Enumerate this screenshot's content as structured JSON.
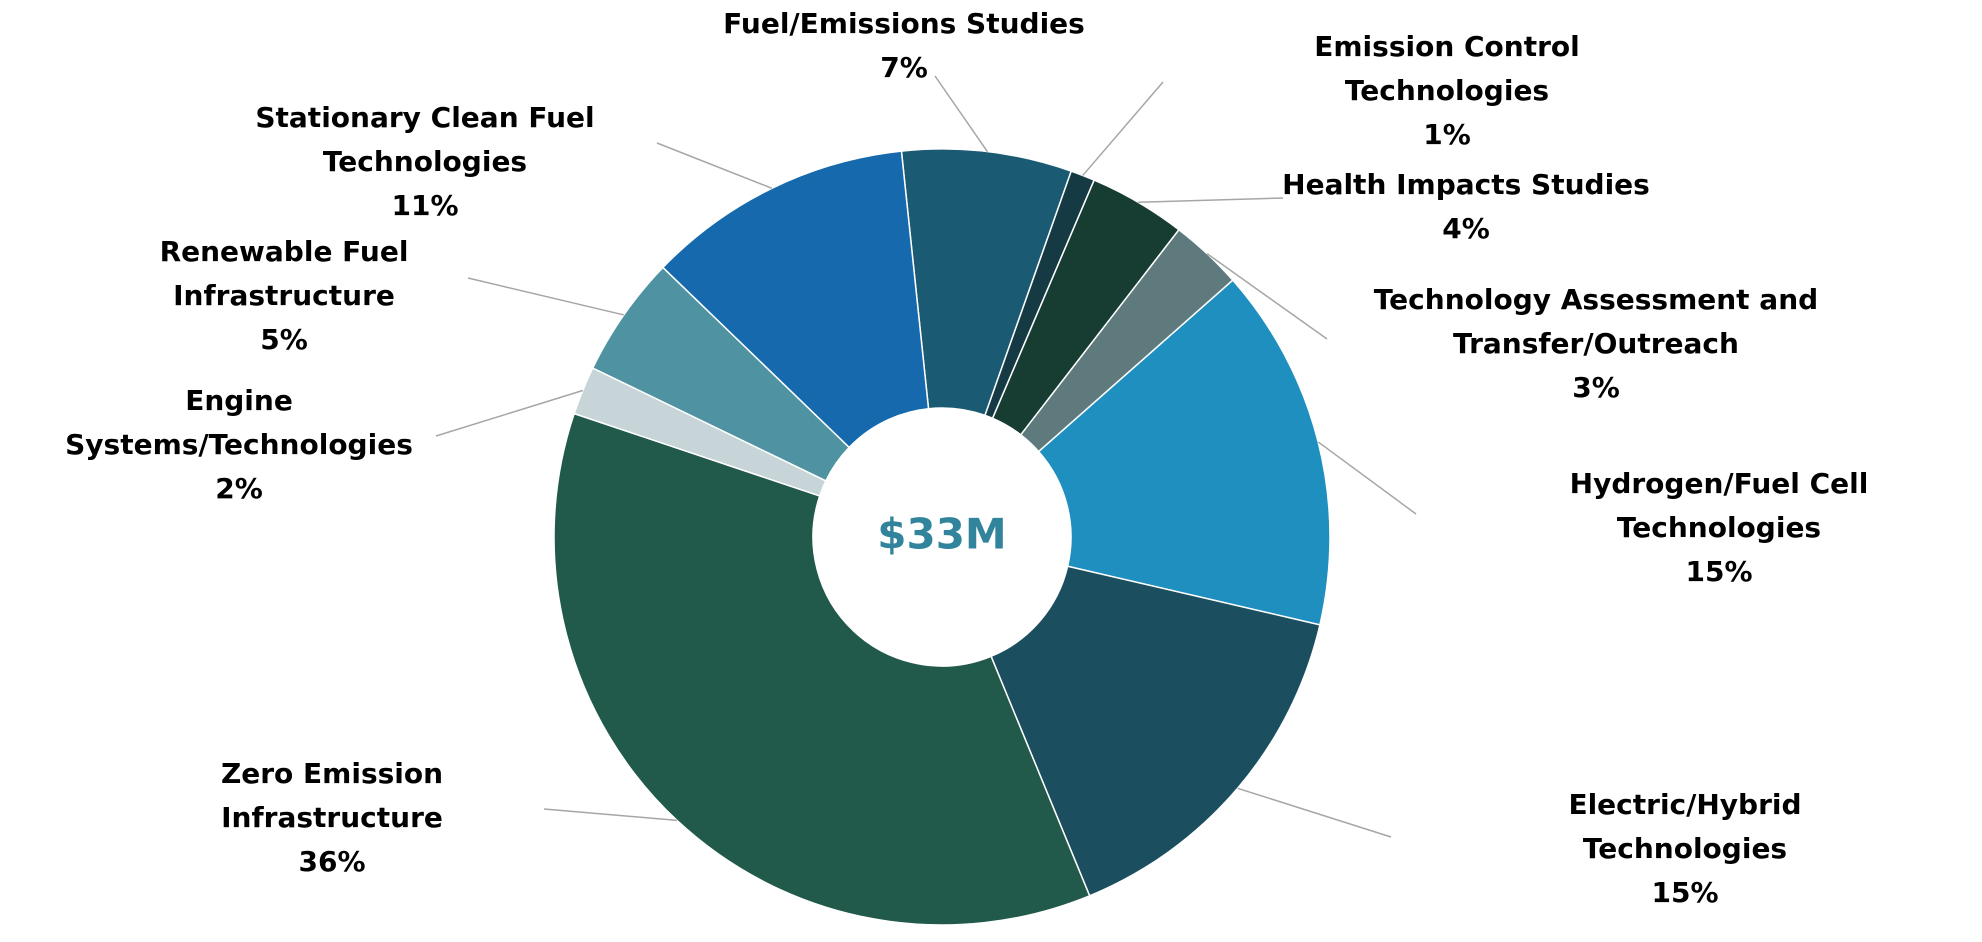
{
  "chart_data": {
    "type": "donut",
    "center_label": "$33M",
    "categories": [
      "Fuel/Emissions Studies",
      "Emission Control Technologies",
      "Health Impacts Studies",
      "Technology Assessment and Transfer/Outreach",
      "Hydrogen/Fuel Cell Technologies",
      "Electric/Hybrid Technologies",
      "Zero Emission Infrastructure",
      "Engine Systems/Technologies",
      "Renewable Fuel Infrastructure",
      "Stationary Clean Fuel Technologies"
    ],
    "values": [
      7,
      1,
      4,
      3,
      15,
      15,
      36,
      2,
      5,
      11
    ],
    "value_labels": [
      "7%",
      "1%",
      "4%",
      "3%",
      "15%",
      "15%",
      "36%",
      "2%",
      "5%",
      "11%"
    ],
    "colors": [
      "#1a5a72",
      "#153a44",
      "#173d33",
      "#5f7a7d",
      "#1f8fc0",
      "#1b4e5e",
      "#21594a",
      "#c8d5d8",
      "#4f93a3",
      "#1669ac"
    ]
  }
}
